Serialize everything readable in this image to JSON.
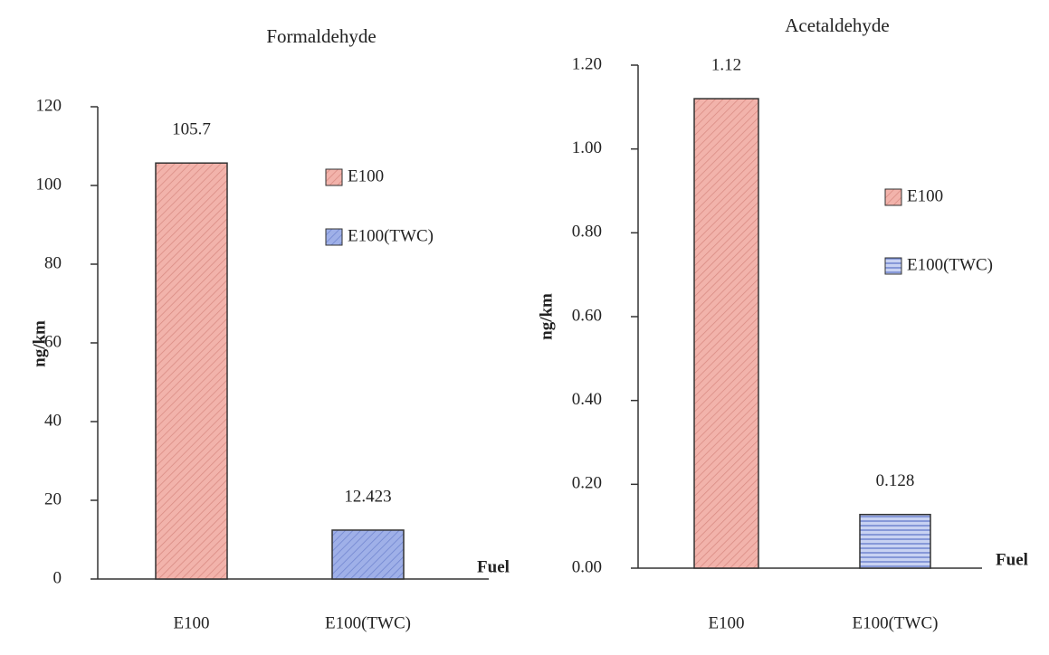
{
  "chart_data": [
    {
      "type": "bar",
      "title": "Formaldehyde",
      "y_label": "ng/km",
      "x_label": "Fuel",
      "categories": [
        "E100",
        "E100(TWC)"
      ],
      "series": [
        {
          "name": "E100",
          "color": "#f2b3ab",
          "values": [
            105.7,
            null
          ]
        },
        {
          "name": "E100(TWC)",
          "color": "#9fb0e8",
          "values": [
            null,
            12.423
          ]
        }
      ],
      "ylim": [
        0,
        120
      ],
      "yticks": [
        0,
        20,
        40,
        60,
        80,
        100,
        120
      ]
    },
    {
      "type": "bar",
      "title": "Acetaldehyde",
      "y_label": "ng/km",
      "x_label": "Fuel",
      "categories": [
        "E100",
        "E100(TWC)"
      ],
      "series": [
        {
          "name": "E100",
          "color": "#f2b3ab",
          "values": [
            1.12,
            null
          ]
        },
        {
          "name": "E100(TWC)",
          "color": "#9fb0e8",
          "values": [
            null,
            0.128
          ]
        }
      ],
      "ylim": [
        0,
        1.2
      ],
      "yticks": [
        {
          "value": 0,
          "label": "0.00"
        },
        {
          "value": 0.2,
          "label": "0.20"
        },
        {
          "value": 0.4,
          "label": "0.40"
        },
        {
          "value": 0.6,
          "label": "0.60"
        },
        {
          "value": 0.8,
          "label": "0.80"
        },
        {
          "value": 1,
          "label": "1.00"
        },
        {
          "value": 1.2,
          "label": "1.20"
        }
      ]
    }
  ]
}
